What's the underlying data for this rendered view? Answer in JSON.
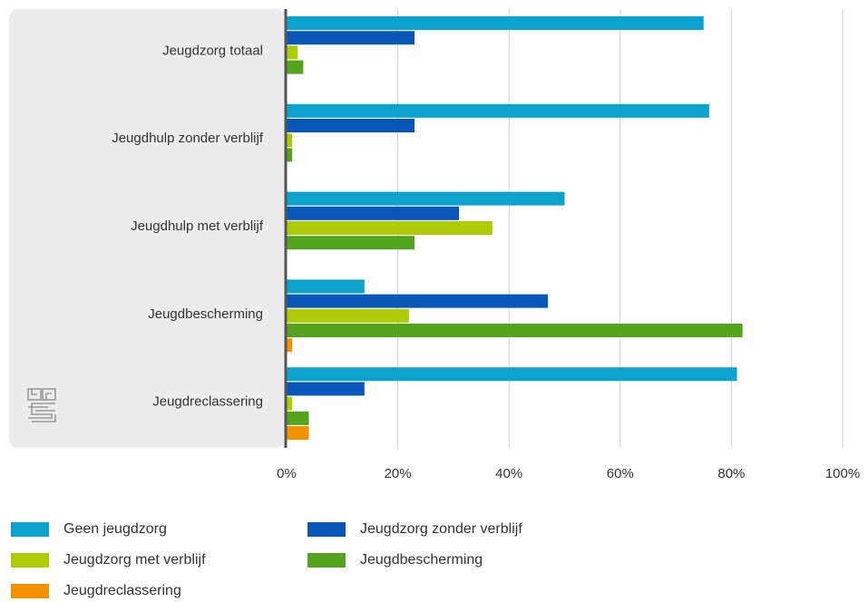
{
  "chart_data": {
    "type": "bar",
    "orientation": "horizontal",
    "categories": [
      "Jeugdzorg totaal",
      "Jeugdhulp zonder verblijf",
      "Jeugdhulp met verblijf",
      "Jeugdbescherming",
      "Jeugdreclassering"
    ],
    "series": [
      {
        "name": "Geen jeugdzorg",
        "color": "#0ba3ce",
        "values": [
          75,
          76,
          50,
          14,
          81
        ]
      },
      {
        "name": "Jeugdzorg zonder verblijf",
        "color": "#0857b8",
        "values": [
          23,
          23,
          31,
          47,
          14
        ]
      },
      {
        "name": "Jeugdzorg met verblijf",
        "color": "#afcb05",
        "values": [
          2,
          1,
          37,
          22,
          1
        ]
      },
      {
        "name": "Jeugdbescherming",
        "color": "#53a31d",
        "values": [
          3,
          1,
          23,
          82,
          4
        ]
      },
      {
        "name": "Jeugdreclassering",
        "color": "#f39200",
        "values": [
          0,
          0,
          0,
          1,
          4
        ]
      }
    ],
    "xlim": [
      0,
      100
    ],
    "ticks": [
      "0%",
      "20%",
      "40%",
      "60%",
      "80%",
      "100%"
    ],
    "grid": true,
    "legend_position": "bottom"
  },
  "logo": {
    "icon": "cbs-logo-icon",
    "text": "cbs"
  },
  "colors": {
    "panel": "#ececec",
    "grid": "#d0d0d0",
    "axis": "#555555"
  }
}
